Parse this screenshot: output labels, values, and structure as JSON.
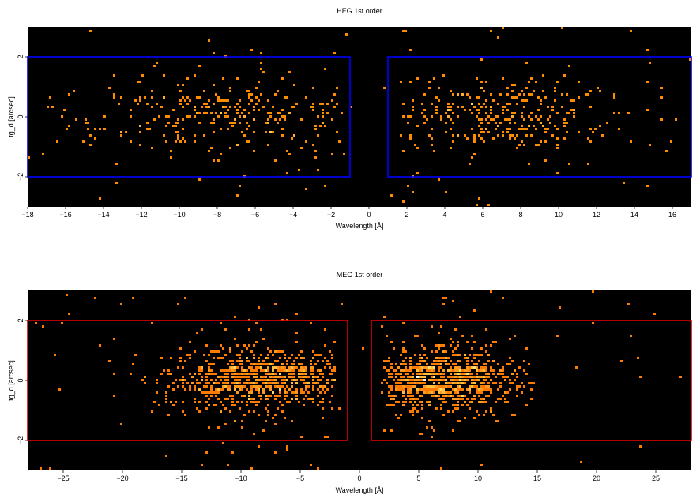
{
  "chart_data": [
    {
      "type": "heatmap",
      "title": "HEG 1st order",
      "xlabel": "Wavelength [Å]",
      "ylabel": "tg_d [arcsec]",
      "xlim": [
        -18,
        17
      ],
      "ylim": [
        -3,
        3
      ],
      "xticks": [
        -18,
        -16,
        -14,
        -12,
        -10,
        -8,
        -6,
        -4,
        -2,
        0,
        2,
        4,
        6,
        8,
        10,
        12,
        14,
        16
      ],
      "yticks": [
        -2,
        0,
        2
      ],
      "background": "#000000",
      "colormap": [
        "#ff8c00",
        "#ffb030",
        "#ffd35a",
        "#ffffff"
      ],
      "regions": {
        "color": "#0000ff",
        "boxes": [
          {
            "x": [
              -18,
              -1
            ],
            "y": [
              -2,
              2
            ]
          },
          {
            "x": [
              1,
              17
            ],
            "y": [
              -2,
              2
            ]
          }
        ]
      },
      "clusters": [
        {
          "center_x": -6.5,
          "spread_x": 4.5,
          "min_x": -17,
          "max_x": -1.3,
          "weight": 340
        },
        {
          "center_x": 6.5,
          "spread_x": 3.5,
          "min_x": 1.6,
          "max_x": 16.5,
          "weight": 340
        }
      ],
      "core_spread_y": 0.55,
      "grid": false
    },
    {
      "type": "heatmap",
      "title": "MEG 1st order",
      "xlabel": "Wavelength [Å]",
      "ylabel": "tg_d [arcsec]",
      "xlim": [
        -28,
        28
      ],
      "ylim": [
        -3,
        3
      ],
      "xticks": [
        -25,
        -20,
        -15,
        -10,
        -5,
        0,
        5,
        10,
        15,
        20,
        25
      ],
      "yticks": [
        -2,
        0,
        2
      ],
      "background": "#000000",
      "colormap": [
        "#ff7a00",
        "#ff9a20",
        "#ffc040",
        "#ffe070",
        "#ffffff"
      ],
      "regions": {
        "color": "#e00000",
        "boxes": [
          {
            "x": [
              -28,
              -1
            ],
            "y": [
              -2,
              2
            ]
          },
          {
            "x": [
              1,
              28
            ],
            "y": [
              -2,
              2
            ]
          }
        ]
      },
      "clusters": [
        {
          "center_x": -8,
          "spread_x": 4.2,
          "min_x": -26,
          "max_x": -2,
          "weight": 900
        },
        {
          "center_x": 7,
          "spread_x": 3.0,
          "min_x": 1.8,
          "max_x": 18,
          "weight": 900
        }
      ],
      "core_spread_y": 0.5,
      "grid": false
    }
  ]
}
